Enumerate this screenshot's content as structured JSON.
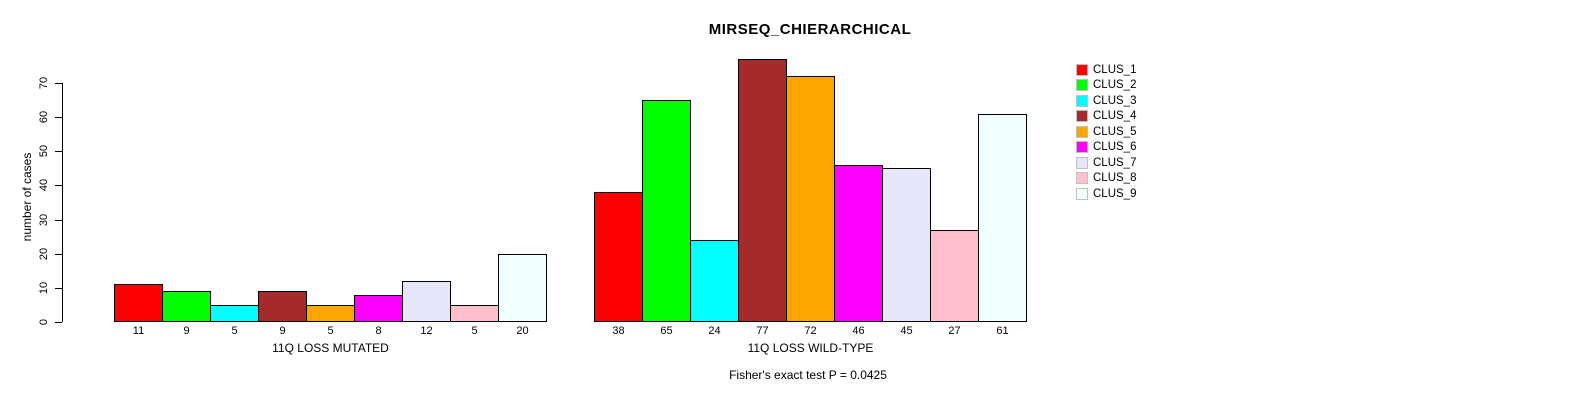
{
  "chart_data": {
    "type": "bar",
    "title": "MIRSEQ_CHIERARCHICAL",
    "ylabel": "number of cases",
    "xlabel": "",
    "yticks": [
      0,
      10,
      20,
      30,
      40,
      50,
      60,
      70
    ],
    "ylim": [
      0,
      77
    ],
    "grid": false,
    "legend_position": "right",
    "series": [
      {
        "name": "CLUS_1",
        "color": "#FF0000"
      },
      {
        "name": "CLUS_2",
        "color": "#00FF00"
      },
      {
        "name": "CLUS_3",
        "color": "#00FFFF"
      },
      {
        "name": "CLUS_4",
        "color": "#A52A2A"
      },
      {
        "name": "CLUS_5",
        "color": "#FFA500"
      },
      {
        "name": "CLUS_6",
        "color": "#FF00FF"
      },
      {
        "name": "CLUS_7",
        "color": "#E6E6FA"
      },
      {
        "name": "CLUS_8",
        "color": "#FFC0CB"
      },
      {
        "name": "CLUS_9",
        "color": "#F0FFFF"
      }
    ],
    "groups": [
      {
        "label": "11Q LOSS MUTATED",
        "values": [
          11,
          9,
          5,
          9,
          5,
          8,
          12,
          5,
          20
        ]
      },
      {
        "label": "11Q LOSS WILD-TYPE",
        "values": [
          38,
          65,
          24,
          77,
          72,
          46,
          45,
          27,
          61
        ]
      }
    ],
    "bar_value_labels": [
      [
        "11",
        "9",
        "5",
        "9",
        "5",
        "8",
        "12",
        "5",
        "20"
      ],
      [
        "38",
        "65",
        "24",
        "77",
        "72",
        "46",
        "45",
        "27",
        "61"
      ]
    ],
    "footnote": "Fisher's exact test P = 0.0425"
  }
}
